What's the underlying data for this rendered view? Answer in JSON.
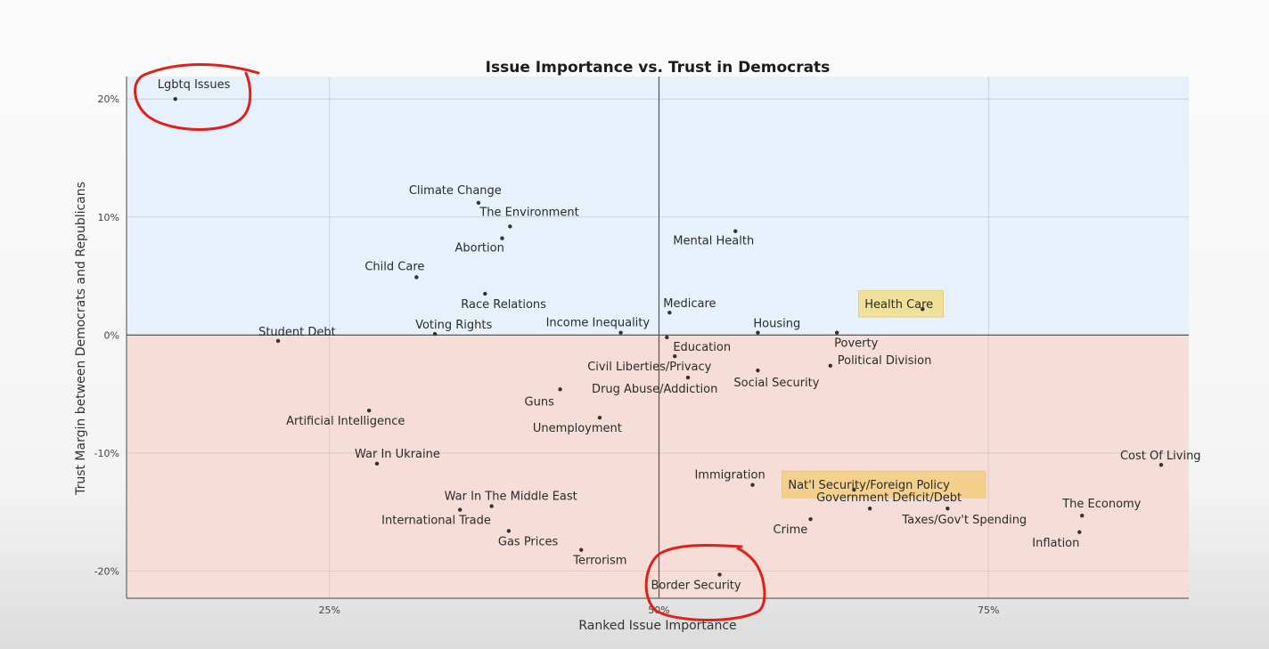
{
  "chart_data": {
    "type": "scatter",
    "title": "Issue Importance vs. Trust in Democrats",
    "xlabel": "Ranked Issue Importance",
    "ylabel": "Trust Margin between Democrats and Republicans",
    "x_ticks": [
      {
        "value": 25,
        "label": "25%"
      },
      {
        "value": 50,
        "label": "50%"
      },
      {
        "value": 75,
        "label": "75%"
      }
    ],
    "y_ticks": [
      {
        "value": 20,
        "label": "20%"
      },
      {
        "value": 10,
        "label": "10%"
      },
      {
        "value": 0,
        "label": "0%"
      },
      {
        "value": -10,
        "label": "-10%"
      },
      {
        "value": -20,
        "label": "-20%"
      }
    ],
    "xlim": [
      9.6,
      90.2
    ],
    "ylim": [
      -22.3,
      21.9
    ],
    "grid": true,
    "colors": {
      "positive_region": "#e7f1fc",
      "negative_region": "#f6ddd7",
      "highlight_yellow": "#efe19a",
      "highlight_orange": "#f4d08c",
      "annotation": "#e0201b"
    },
    "points": [
      {
        "label": "Lgbtq Issues",
        "x": 13.3,
        "y": 20.0
      },
      {
        "label": "Climate Change",
        "x": 36.3,
        "y": 11.2
      },
      {
        "label": "The Environment",
        "x": 38.7,
        "y": 9.2
      },
      {
        "label": "Abortion",
        "x": 38.1,
        "y": 8.2
      },
      {
        "label": "Mental Health",
        "x": 55.8,
        "y": 8.8
      },
      {
        "label": "Child Care",
        "x": 31.6,
        "y": 4.9
      },
      {
        "label": "Race Relations",
        "x": 36.8,
        "y": 3.5
      },
      {
        "label": "Medicare",
        "x": 50.8,
        "y": 1.9
      },
      {
        "label": "Health Care",
        "x": 70.0,
        "y": 2.2,
        "highlight": "yellow"
      },
      {
        "label": "Student Debt",
        "x": 21.1,
        "y": -0.5
      },
      {
        "label": "Voting Rights",
        "x": 33.0,
        "y": 0.1
      },
      {
        "label": "Income Inequality",
        "x": 47.1,
        "y": 0.2
      },
      {
        "label": "Housing",
        "x": 57.5,
        "y": 0.2
      },
      {
        "label": "Poverty",
        "x": 63.5,
        "y": 0.2
      },
      {
        "label": "Education",
        "x": 50.6,
        "y": -0.2
      },
      {
        "label": "Civil Liberties/Privacy",
        "x": 51.2,
        "y": -1.8
      },
      {
        "label": "Political Division",
        "x": 63.0,
        "y": -2.6
      },
      {
        "label": "Social Security",
        "x": 57.5,
        "y": -3.0
      },
      {
        "label": "Drug Abuse/Addiction",
        "x": 52.2,
        "y": -3.6
      },
      {
        "label": "Guns",
        "x": 42.5,
        "y": -4.6
      },
      {
        "label": "Artificial Intelligence",
        "x": 28.0,
        "y": -6.4
      },
      {
        "label": "Unemployment",
        "x": 45.5,
        "y": -7.0
      },
      {
        "label": "Cost Of Living",
        "x": 88.1,
        "y": -11.0
      },
      {
        "label": "War In Ukraine",
        "x": 28.6,
        "y": -10.9
      },
      {
        "label": "Immigration",
        "x": 57.1,
        "y": -12.7
      },
      {
        "label": "Nat'l Security/Foreign Policy",
        "x": 64.8,
        "y": -13.1,
        "highlight": "orange"
      },
      {
        "label": "Government Deficit/Debt",
        "x": 66.0,
        "y": -14.7
      },
      {
        "label": "War In The Middle East",
        "x": 37.3,
        "y": -14.5
      },
      {
        "label": "International Trade",
        "x": 34.9,
        "y": -14.8
      },
      {
        "label": "The Economy",
        "x": 82.1,
        "y": -15.3
      },
      {
        "label": "Taxes/Gov't Spending",
        "x": 71.9,
        "y": -14.7
      },
      {
        "label": "Crime",
        "x": 61.5,
        "y": -15.6
      },
      {
        "label": "Gas Prices",
        "x": 38.6,
        "y": -16.6
      },
      {
        "label": "Inflation",
        "x": 81.9,
        "y": -16.7
      },
      {
        "label": "Terrorism",
        "x": 44.1,
        "y": -18.2
      },
      {
        "label": "Border Security",
        "x": 54.6,
        "y": -20.3
      }
    ]
  }
}
